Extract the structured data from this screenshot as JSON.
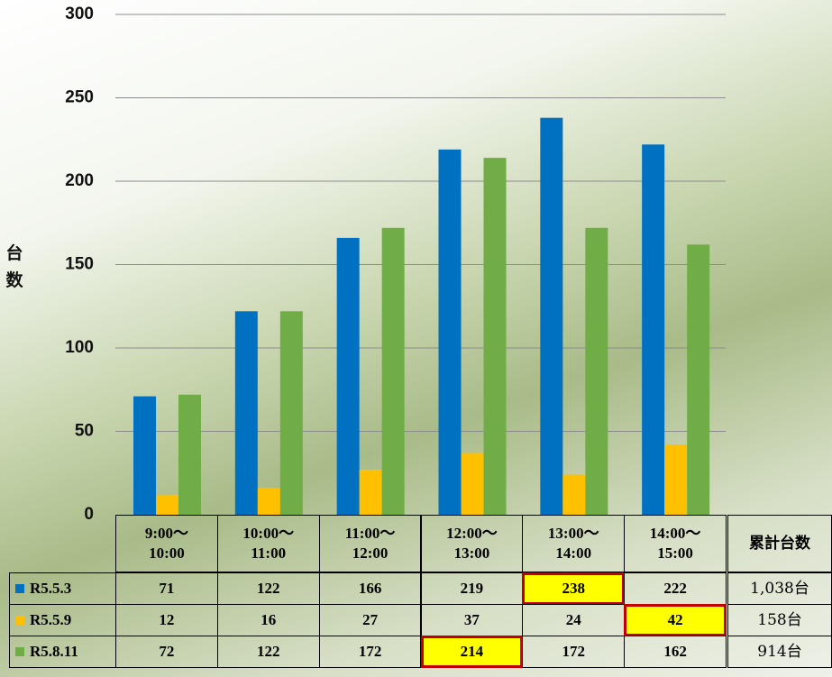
{
  "chart_data": {
    "type": "bar",
    "y_label": "台数",
    "categories": [
      "9:00～\n10:00",
      "10:00～\n11:00",
      "11:00～\n12:00",
      "12:00～\n13:00",
      "13:00～\n14:00",
      "14:00～\n15:00"
    ],
    "series": [
      {
        "name": "R5.5.3",
        "color": "#0070c0",
        "values": [
          71,
          122,
          166,
          219,
          238,
          222
        ],
        "highlight_index": 4
      },
      {
        "name": "R5.5.9",
        "color": "#ffc000",
        "values": [
          12,
          16,
          27,
          37,
          24,
          42
        ],
        "highlight_index": 5
      },
      {
        "name": "R5.8.11",
        "color": "#70ad47",
        "values": [
          72,
          122,
          172,
          214,
          172,
          162
        ],
        "highlight_index": 3
      }
    ],
    "total_header": "累計台数",
    "totals": [
      "1,038台",
      "158台",
      "914台"
    ],
    "ylim": [
      0,
      300
    ],
    "yticks": [
      0,
      50,
      100,
      150,
      200,
      250,
      300
    ],
    "grid": true
  }
}
